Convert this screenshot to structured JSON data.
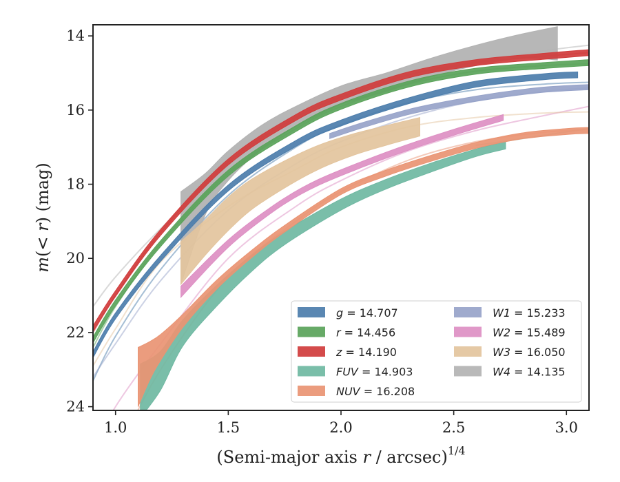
{
  "chart_data": {
    "type": "line",
    "xlabel": "(Semi-major axis r / arcsec)",
    "xlabel_parts": {
      "prefix": "(Semi-major axis ",
      "var": "r",
      "middle": " / arcsec)",
      "exponent": "1/4"
    },
    "ylabel": "m(< r) (mag)",
    "ylabel_parts": {
      "m": "m",
      "open": "(",
      "lt": "< ",
      "r": "r",
      "close": ") (mag)"
    },
    "xlim": [
      0.9,
      3.1
    ],
    "ylim": [
      24.1,
      13.7
    ],
    "y_inverted": true,
    "xticks": [
      1.0,
      1.5,
      2.0,
      2.5,
      3.0
    ],
    "xtick_labels": [
      "1.0",
      "1.5",
      "2.0",
      "2.5",
      "3.0"
    ],
    "yticks": [
      14,
      16,
      18,
      20,
      22,
      24
    ],
    "ytick_labels": [
      "14",
      "16",
      "18",
      "20",
      "22",
      "24"
    ],
    "grid": false,
    "legend_position": "lower-right",
    "legend_columns": 2,
    "series": [
      {
        "name": "g = 14.707",
        "band": "g",
        "value": "14.707",
        "color": "#4c7dab",
        "model": {
          "x": [
            0.9,
            1.0,
            1.2,
            1.5,
            1.8,
            2.0,
            2.3,
            2.6,
            2.9,
            3.1
          ],
          "y": [
            23.3,
            22.1,
            20.3,
            18.3,
            17.0,
            16.4,
            15.8,
            15.45,
            15.3,
            15.25
          ]
        },
        "profile": {
          "x": [
            0.9,
            1.0,
            1.2,
            1.5,
            1.8,
            2.0,
            2.3,
            2.6,
            2.9,
            3.05
          ],
          "y": [
            22.6,
            21.55,
            20.0,
            18.1,
            16.9,
            16.35,
            15.75,
            15.3,
            15.1,
            15.05
          ],
          "width": 0.08
        }
      },
      {
        "name": "r = 14.456",
        "band": "r",
        "value": "14.456",
        "color": "#5aa35a",
        "model": {
          "x": [
            0.9,
            1.0,
            1.2,
            1.5,
            1.8,
            2.0,
            2.3,
            2.6,
            2.9,
            3.1
          ],
          "y": [
            22.4,
            21.3,
            19.6,
            17.7,
            16.5,
            15.9,
            15.3,
            14.95,
            14.8,
            14.75
          ]
        },
        "profile": {
          "x": [
            0.9,
            1.0,
            1.2,
            1.5,
            1.8,
            2.0,
            2.3,
            2.6,
            2.9,
            3.1
          ],
          "y": [
            22.2,
            21.2,
            19.6,
            17.7,
            16.5,
            15.9,
            15.3,
            14.95,
            14.8,
            14.72
          ],
          "width": 0.08
        }
      },
      {
        "name": "z = 14.190",
        "band": "z",
        "value": "14.190",
        "color": "#d03c3c",
        "model": {
          "x": [
            0.9,
            1.0,
            1.2,
            1.5,
            1.8,
            2.0,
            2.3,
            2.6,
            2.9,
            3.1
          ],
          "y": [
            22.0,
            21.0,
            19.3,
            17.4,
            16.2,
            15.65,
            15.05,
            14.72,
            14.55,
            14.45
          ]
        },
        "profile": {
          "x": [
            0.9,
            1.0,
            1.2,
            1.5,
            1.8,
            2.0,
            2.3,
            2.6,
            2.9,
            3.1
          ],
          "y": [
            21.9,
            20.95,
            19.3,
            17.4,
            16.2,
            15.65,
            15.05,
            14.72,
            14.55,
            14.45
          ],
          "width": 0.08
        }
      },
      {
        "name": "FUV = 14.903",
        "band": "FUV",
        "value": "14.903",
        "color": "#6fb8a2",
        "model": {
          "x": [
            2.6,
            2.75,
            2.9,
            3.1
          ],
          "y": [
            16.95,
            16.82,
            16.68,
            16.5
          ]
        },
        "profile": {
          "x": [
            1.11,
            1.2,
            1.3,
            1.45,
            1.6,
            1.75,
            2.0,
            2.2,
            2.4,
            2.6,
            2.73
          ],
          "y": [
            23.7,
            23.0,
            22.0,
            21.0,
            20.15,
            19.45,
            18.55,
            18.0,
            17.55,
            17.15,
            16.95
          ],
          "width_top": [
            0.85,
            0.5,
            0.35,
            0.28,
            0.22,
            0.18,
            0.15,
            0.13,
            0.12,
            0.1,
            0.1
          ],
          "width_bottom": [
            0.6,
            0.55,
            0.35,
            0.28,
            0.22,
            0.18,
            0.15,
            0.13,
            0.12,
            0.1,
            0.1
          ]
        },
        "bottom_stub": {
          "x": [
            1.11,
            1.18
          ],
          "y": [
            24.1,
            24.1
          ]
        }
      },
      {
        "name": "NUV = 16.208",
        "band": "NUV",
        "value": "16.208",
        "color": "#e99473",
        "model": {
          "x": [
            0.9,
            1.0,
            1.2,
            1.5,
            1.8,
            2.0,
            2.3,
            2.6,
            2.9,
            3.1
          ],
          "y": [
            26.4,
            25.3,
            23.0,
            20.5,
            19.0,
            18.2,
            17.35,
            16.85,
            16.6,
            16.52
          ]
        },
        "profile": {
          "x": [
            1.1,
            1.15,
            1.2,
            1.3,
            1.45,
            1.6,
            1.75,
            2.0,
            2.2,
            2.4,
            2.6,
            2.8,
            3.0,
            3.1
          ],
          "y": [
            23.2,
            22.75,
            22.35,
            21.65,
            20.7,
            19.9,
            19.2,
            18.2,
            17.7,
            17.3,
            16.95,
            16.7,
            16.58,
            16.55
          ],
          "width_top": [
            0.8,
            0.5,
            0.3,
            0.15,
            0.12,
            0.1,
            0.09,
            0.08,
            0.08,
            0.08,
            0.08,
            0.08,
            0.08,
            0.08
          ],
          "width_bottom": [
            0.8,
            0.55,
            0.4,
            0.2,
            0.12,
            0.1,
            0.09,
            0.08,
            0.08,
            0.08,
            0.08,
            0.08,
            0.08,
            0.08
          ]
        }
      },
      {
        "name": "W1 = 15.233",
        "band": "W1",
        "value": "15.233",
        "color": "#97a3c9",
        "model": {
          "x": [
            0.9,
            1.0,
            1.2,
            1.5,
            1.8,
            2.0,
            2.3,
            2.6,
            2.9,
            3.1
          ],
          "y": [
            23.2,
            22.3,
            20.6,
            18.7,
            17.45,
            16.85,
            16.2,
            15.75,
            15.5,
            15.4
          ]
        },
        "profile": {
          "x": [
            1.95,
            2.1,
            2.3,
            2.5,
            2.7,
            2.9,
            3.1
          ],
          "y": [
            16.7,
            16.4,
            16.05,
            15.8,
            15.6,
            15.45,
            15.38
          ],
          "width": 0.07
        }
      },
      {
        "name": "W2 = 15.489",
        "band": "W2",
        "value": "15.489",
        "color": "#dd8fc3",
        "model": {
          "x": [
            0.9,
            1.0,
            1.2,
            1.5,
            1.8,
            2.0,
            2.3,
            2.6,
            2.9,
            3.1
          ],
          "y": [
            25.2,
            24.0,
            22.3,
            20.0,
            18.6,
            17.9,
            17.1,
            16.55,
            16.15,
            15.9
          ]
        },
        "profile": {
          "x": [
            1.29,
            1.4,
            1.5,
            1.6,
            1.75,
            1.9,
            2.1,
            2.3,
            2.5,
            2.72
          ],
          "y": [
            20.9,
            20.2,
            19.6,
            19.1,
            18.45,
            17.95,
            17.45,
            17.0,
            16.6,
            16.2
          ],
          "width_top": [
            0.15,
            0.12,
            0.1,
            0.09,
            0.08,
            0.08,
            0.08,
            0.08,
            0.08,
            0.08
          ],
          "width_bottom": [
            0.15,
            0.12,
            0.1,
            0.09,
            0.08,
            0.08,
            0.08,
            0.08,
            0.08,
            0.08
          ]
        }
      },
      {
        "name": "W3 = 16.050",
        "band": "W3",
        "value": "16.050",
        "color": "#e3c49d",
        "model": {
          "x": [
            0.9,
            1.0,
            1.2,
            1.5,
            1.8,
            2.0,
            2.3,
            2.6,
            2.9,
            3.1
          ],
          "y": [
            22.9,
            21.9,
            20.1,
            18.6,
            17.6,
            17.0,
            16.45,
            16.2,
            16.08,
            16.05
          ]
        },
        "profile": {
          "x": [
            1.29,
            1.4,
            1.5,
            1.6,
            1.75,
            1.9,
            2.05,
            2.2,
            2.35
          ],
          "y": [
            20.1,
            19.4,
            18.8,
            18.3,
            17.75,
            17.3,
            16.95,
            16.7,
            16.5
          ],
          "width_top": [
            0.55,
            0.45,
            0.45,
            0.42,
            0.38,
            0.35,
            0.3,
            0.28,
            0.3
          ],
          "width_bottom": [
            0.6,
            0.5,
            0.45,
            0.4,
            0.35,
            0.3,
            0.28,
            0.25,
            0.2
          ]
        }
      },
      {
        "name": "W4 = 14.135",
        "band": "W4",
        "value": "14.135",
        "color": "#b3b3b3",
        "model": {
          "x": [
            0.9,
            1.0,
            1.2,
            1.5,
            1.8,
            2.0,
            2.3,
            2.6,
            2.9,
            3.1
          ],
          "y": [
            21.3,
            20.5,
            19.2,
            17.5,
            16.35,
            15.8,
            15.15,
            14.7,
            14.4,
            14.25
          ]
        },
        "profile": {
          "x": [
            1.29,
            1.4,
            1.5,
            1.65,
            1.8,
            2.0,
            2.2,
            2.4,
            2.6,
            2.8,
            2.96
          ],
          "y": [
            19.3,
            18.2,
            17.45,
            16.7,
            16.15,
            15.6,
            15.25,
            14.85,
            14.55,
            14.3,
            14.2
          ],
          "width_top": [
            1.1,
            0.5,
            0.35,
            0.3,
            0.25,
            0.25,
            0.25,
            0.25,
            0.3,
            0.35,
            0.45
          ],
          "width_bottom": [
            1.4,
            0.6,
            0.45,
            0.35,
            0.3,
            0.25,
            0.25,
            0.25,
            0.25,
            0.3,
            0.45
          ]
        }
      }
    ]
  }
}
